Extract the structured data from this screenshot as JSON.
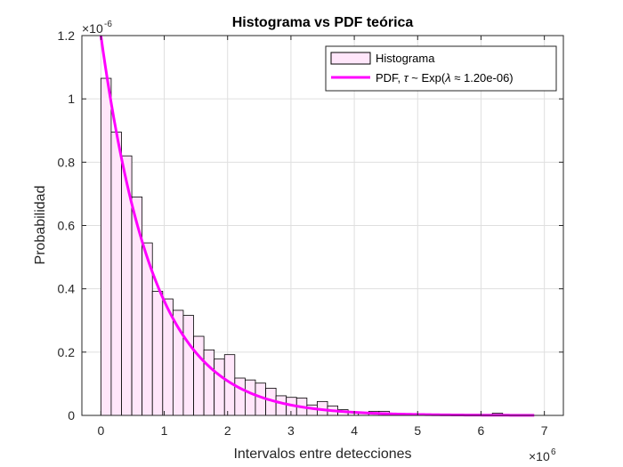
{
  "chart_data": {
    "type": "bar",
    "title": "Histograma vs PDF teórica",
    "xlabel": "Intervalos entre detecciones",
    "ylabel": "Probabilidad",
    "x_scale_exponent": "×10^6",
    "x_exponent_base": "×10",
    "x_exponent_power": "6",
    "y_scale_exponent": "×10^-6",
    "y_exponent_base": "×10",
    "y_exponent_power": "-6",
    "xlim": [
      -0.3,
      7.3
    ],
    "ylim": [
      0,
      1.2
    ],
    "xticks": [
      0,
      1,
      2,
      3,
      4,
      5,
      6,
      7
    ],
    "xtick_labels": [
      "0",
      "1",
      "2",
      "3",
      "4",
      "5",
      "6",
      "7"
    ],
    "yticks": [
      0,
      0.2,
      0.4,
      0.6,
      0.8,
      1,
      1.2
    ],
    "ytick_labels": [
      "0",
      "0.2",
      "0.4",
      "0.6",
      "0.8",
      "1",
      "1.2"
    ],
    "grid": true,
    "legend_position": "top-right",
    "histogram": {
      "name": "Histograma",
      "bin_width": 0.1626,
      "bin_start": 0,
      "values": [
        1.065,
        0.895,
        0.82,
        0.69,
        0.545,
        0.392,
        0.368,
        0.332,
        0.316,
        0.25,
        0.207,
        0.178,
        0.192,
        0.118,
        0.112,
        0.102,
        0.086,
        0.062,
        0.057,
        0.055,
        0.033,
        0.044,
        0.03,
        0.018,
        0.01,
        0.008,
        0.013,
        0.013,
        0.003,
        0.006,
        0.004,
        0.003,
        0.001,
        0.002,
        0.002,
        0.001,
        0.001,
        0.0025,
        0.007,
        0.001,
        0.001,
        0.0005
      ],
      "fill_color": "#ffe6fa",
      "edge_color": "#000000"
    },
    "series": [
      {
        "name": "PDF, τ ~ Exp(λ ≈ 1.20e-06)",
        "type": "line",
        "function": "lambda*exp(-lambda*x)",
        "lambda": 1.2,
        "x_range": [
          0,
          6.84
        ],
        "color": "#ff00ff"
      }
    ],
    "legend": {
      "hist_label": "Histograma",
      "pdf_prefix": "PDF, ",
      "pdf_tau": "τ",
      "pdf_mid": " ~ Exp(",
      "pdf_lambda": "λ",
      "pdf_approx": " ≈ ",
      "pdf_value": "1.20e-06)"
    }
  },
  "colors": {
    "axis": "#262626",
    "grid": "#dfdfdf",
    "background": "#ffffff"
  }
}
